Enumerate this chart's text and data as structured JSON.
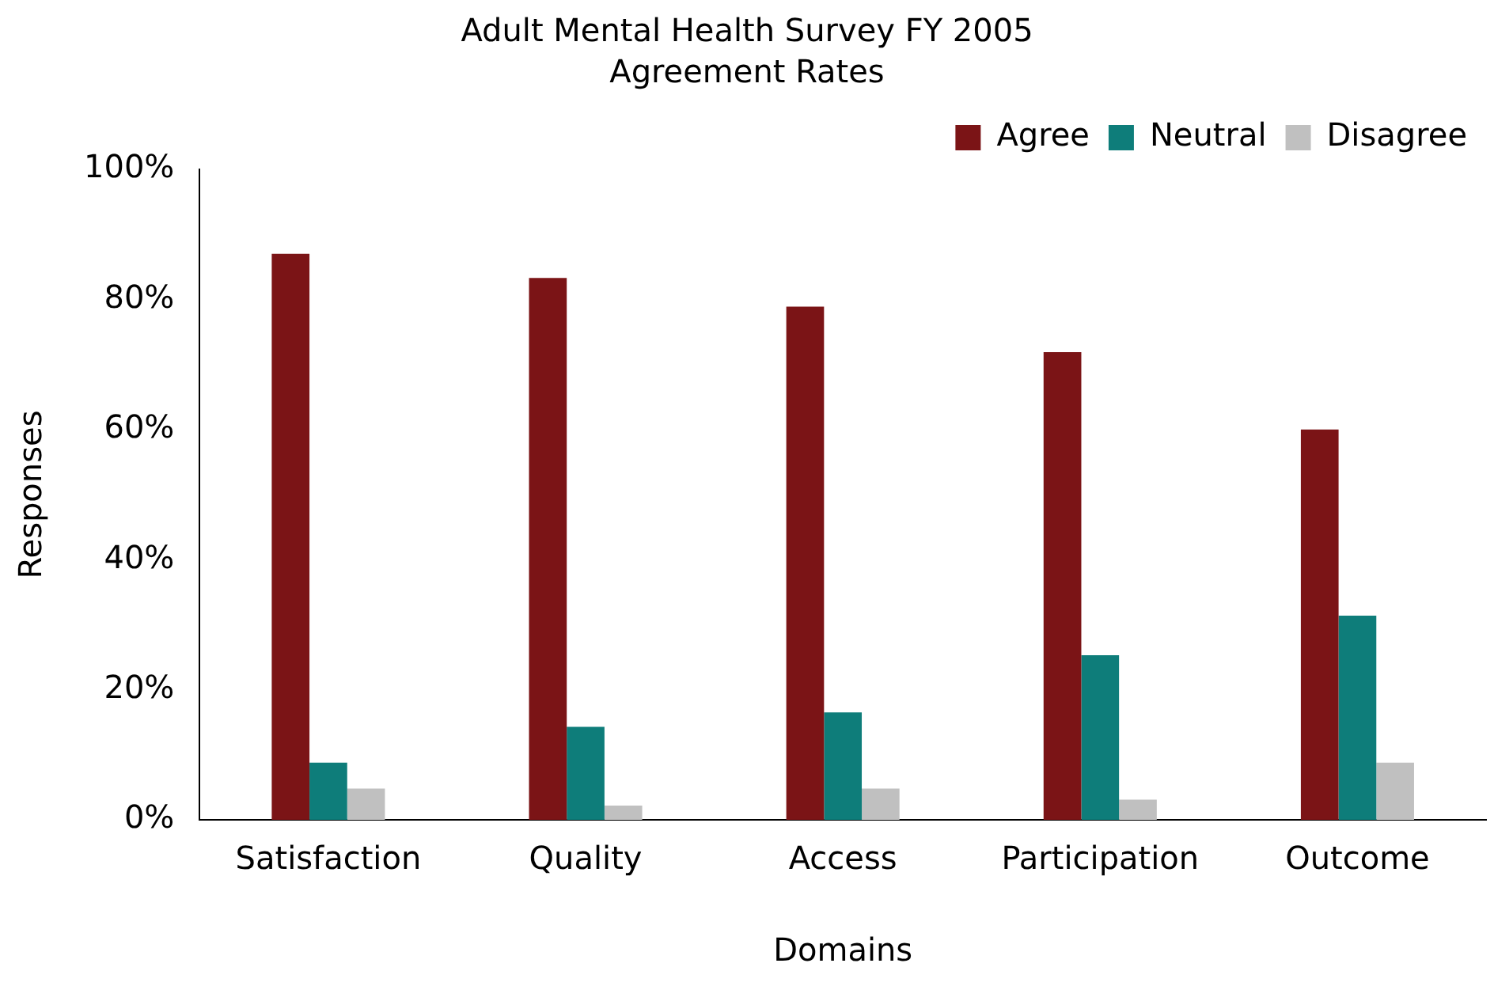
{
  "chart_data": {
    "type": "bar",
    "title": "Adult Mental Health Survey FY 2005",
    "subtitle": "Agreement Rates",
    "xlabel": "Domains",
    "ylabel": "Responses",
    "categories": [
      "Satisfaction",
      "Quality",
      "Access",
      "Participation",
      "Outcome"
    ],
    "series": [
      {
        "name": "Agree",
        "color": "#7b1416",
        "values": [
          87,
          83.3,
          78.9,
          71.9,
          60
        ]
      },
      {
        "name": "Neutral",
        "color": "#0e7d7a",
        "values": [
          8.8,
          14.3,
          16.5,
          25.3,
          31.4
        ]
      },
      {
        "name": "Disagree",
        "color": "#c0c0c0",
        "values": [
          4.8,
          2.2,
          4.8,
          3.1,
          8.8
        ]
      }
    ],
    "ylim": [
      0,
      100
    ],
    "yticks": [
      {
        "value": 0,
        "label": "0%"
      },
      {
        "value": 20,
        "label": "20%"
      },
      {
        "value": 40,
        "label": "40%"
      },
      {
        "value": 60,
        "label": "60%"
      },
      {
        "value": 80,
        "label": "80%"
      },
      {
        "value": 100,
        "label": "100%"
      }
    ],
    "grid": false,
    "legend": "top right"
  }
}
